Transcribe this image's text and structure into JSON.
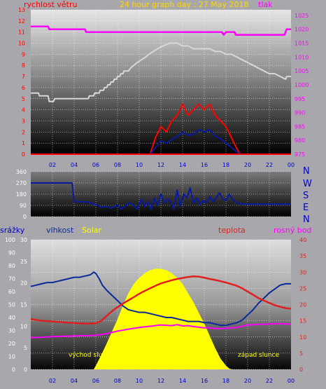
{
  "colors": {
    "wind": "#ff0000",
    "gust": "#ff0000",
    "pressure": "#ff00ff",
    "temperature": "#e02020",
    "dewpoint": "#ff00ff",
    "humidity": "#0a2a9a",
    "direction": "#0a1aa0",
    "solar": "#ffff00",
    "rain": "#0000cc",
    "title": "#ffd800",
    "grid": "#ffffff"
  },
  "chart_data": [
    {
      "type": "line",
      "title": "24 hour graph day : 27 May 2018",
      "ylabel_left": "rychlost větru",
      "ylabel_right": "tlak",
      "xlim": [
        0,
        24
      ],
      "ylim_left": [
        0,
        13
      ],
      "ylim_right": [
        975,
        1027
      ],
      "x_ticks": [
        "02",
        "04",
        "06",
        "08",
        "10",
        "12",
        "14",
        "16",
        "18",
        "20",
        "22",
        "00"
      ],
      "y_ticks_left": [
        "0",
        "1",
        "2",
        "3",
        "4",
        "5",
        "6",
        "7",
        "8",
        "9",
        "10",
        "11",
        "12",
        "13"
      ],
      "y_ticks_right": [
        "975",
        "980",
        "985",
        "990",
        "995",
        "1000",
        "1005",
        "1010",
        "1015",
        "1020",
        "1025"
      ],
      "series": [
        {
          "name": "tlak",
          "axis": "right",
          "x": [
            0,
            1.6,
            1.7,
            5.0,
            5.1,
            9.0,
            9.1,
            17.6,
            17.8,
            18.0,
            18.2,
            18.8,
            18.9,
            23.4,
            23.6,
            24
          ],
          "y": [
            1021,
            1021,
            1020,
            1020,
            1019,
            1019,
            1019,
            1019,
            1018,
            1019,
            1019,
            1019,
            1018,
            1018,
            1020,
            1020
          ]
        },
        {
          "name": "",
          "axis": "right",
          "x": [
            0,
            0.1,
            0.7,
            0.8,
            1.6,
            1.7,
            2.1,
            2.2,
            5.3,
            5.4,
            5.8,
            5.9,
            6.3,
            6.4,
            6.7,
            6.8,
            7.0,
            7.1,
            7.3,
            7.4,
            7.6,
            7.7,
            7.9,
            8.0,
            8.2,
            8.3,
            8.5,
            8.6,
            9.0,
            9.2,
            9.5,
            9.8,
            10.2,
            10.6,
            10.9,
            11.3,
            11.7,
            12.2,
            12.8,
            13.5,
            14.0,
            14.5,
            15.0,
            15.5,
            16.0,
            16.5,
            17.0,
            17.5,
            18.0,
            18.5,
            19.0,
            19.5,
            20.0,
            20.5,
            21.0,
            21.5,
            22.0,
            22.5,
            23.0,
            23.5,
            23.6,
            24
          ],
          "y": [
            997,
            997,
            997,
            996,
            996,
            994,
            994,
            995,
            995,
            996,
            996,
            997,
            997,
            998,
            998,
            999,
            999,
            1000,
            1000,
            1001,
            1001,
            1002,
            1002,
            1003,
            1003,
            1004,
            1004,
            1005,
            1005,
            1006,
            1007,
            1008,
            1009,
            1010,
            1011,
            1012,
            1013,
            1014,
            1015,
            1015,
            1014,
            1014,
            1013,
            1013,
            1013,
            1013,
            1012,
            1012,
            1011,
            1011,
            1010,
            1009,
            1008,
            1007,
            1006,
            1005,
            1004,
            1004,
            1003,
            1002,
            1003,
            1003
          ]
        },
        {
          "name": "",
          "axis": "left",
          "x": [
            11.0,
            11.5,
            12.0,
            12.5,
            13.0,
            13.5,
            14.0,
            14.5,
            15.0,
            15.5,
            16.0,
            16.5,
            17.0,
            17.5,
            18.0,
            18.5,
            19.0,
            19.3
          ],
          "y": [
            0,
            1.5,
            2.5,
            2.0,
            3.0,
            3.5,
            4.5,
            3.5,
            4.0,
            4.5,
            4.0,
            4.5,
            3.5,
            3.0,
            2.5,
            1.5,
            0.5,
            0
          ]
        },
        {
          "name": "",
          "axis": "left",
          "x": [
            11.0,
            11.5,
            12.0,
            12.5,
            13.0,
            13.5,
            14.0,
            14.5,
            15.0,
            15.5,
            16.0,
            16.5,
            17.0,
            17.5,
            18.0,
            18.5,
            19.0,
            19.3
          ],
          "y": [
            0,
            0.6,
            1.2,
            1.0,
            1.3,
            1.6,
            2.0,
            1.7,
            1.8,
            2.2,
            2.0,
            2.2,
            1.6,
            1.4,
            1.0,
            0.6,
            0.2,
            0
          ]
        }
      ]
    },
    {
      "type": "line",
      "xlim": [
        0,
        24
      ],
      "ylim": [
        0,
        360
      ],
      "y_ticks": [
        "0",
        "45",
        "90",
        "135",
        "180",
        "225",
        "270",
        "315",
        "360"
      ],
      "direction_labels": [
        "N",
        "W",
        "S",
        "E",
        "N"
      ],
      "series": [
        {
          "name": "",
          "x": [
            0,
            3.8,
            3.9,
            4.0,
            5.0,
            5.4,
            5.5,
            6.2,
            6.4,
            7.0,
            7.4,
            8.0,
            8.3,
            8.7,
            9.0,
            9.4,
            9.8,
            10.2,
            10.5,
            10.8,
            11.1,
            11.4,
            11.7,
            12.0,
            12.3,
            12.6,
            12.9,
            13.2,
            13.5,
            13.8,
            14.1,
            14.4,
            14.7,
            15.0,
            15.3,
            15.6,
            15.9,
            16.2,
            16.5,
            16.8,
            17.1,
            17.4,
            17.7,
            18.0,
            18.3,
            18.6,
            19.0,
            19.5,
            20.0,
            20.5,
            21.0,
            22.0,
            23.0,
            24
          ],
          "y": [
            270,
            270,
            200,
            120,
            120,
            115,
            110,
            90,
            75,
            80,
            70,
            90,
            60,
            80,
            110,
            95,
            60,
            140,
            80,
            120,
            60,
            150,
            90,
            180,
            110,
            140,
            120,
            60,
            210,
            80,
            180,
            150,
            230,
            110,
            150,
            95,
            130,
            110,
            160,
            120,
            150,
            190,
            140,
            130,
            180,
            140,
            110,
            100,
            100,
            100,
            100,
            100,
            100,
            100
          ]
        }
      ]
    },
    {
      "type": "line",
      "ylabels": [
        "srážky",
        "vlhkost",
        "Solar",
        "teplota",
        "rosný bod"
      ],
      "xlim": [
        0,
        24
      ],
      "y_ticks_rain": [
        "0",
        "10",
        "20",
        "30",
        "40",
        "50",
        "60",
        "70",
        "80",
        "90",
        "100"
      ],
      "y_ticks_humidity": [
        "0",
        "5",
        "10",
        "15",
        "20",
        "25",
        "30"
      ],
      "y_ticks_temp": [
        "0",
        "5",
        "10",
        "15",
        "20",
        "25",
        "30",
        "35",
        "40"
      ],
      "annotations": [
        "východ slunce",
        "západ slunce"
      ],
      "series": [
        {
          "name": "Solar",
          "x": [
            5.8,
            6.0,
            6.5,
            7.0,
            7.5,
            8.0,
            8.5,
            9.0,
            9.5,
            10.0,
            10.5,
            11.0,
            11.5,
            12.0,
            12.5,
            13.0,
            13.5,
            14.0,
            14.5,
            15.0,
            15.5,
            16.0,
            16.5,
            17.0,
            17.5,
            18.0,
            18.3,
            18.6
          ],
          "y": [
            0,
            25,
            95,
            170,
            250,
            330,
            420,
            500,
            560,
            600,
            630,
            650,
            660,
            660,
            650,
            630,
            600,
            560,
            500,
            440,
            370,
            300,
            220,
            140,
            70,
            25,
            5,
            0
          ]
        },
        {
          "name": "vlhkost",
          "x": [
            0,
            0.5,
            1.0,
            1.5,
            2.0,
            2.5,
            3.0,
            3.5,
            4.0,
            4.5,
            5.0,
            5.5,
            5.8,
            6.0,
            6.3,
            6.6,
            7.0,
            7.5,
            8.0,
            8.5,
            9.0,
            9.5,
            10.0,
            10.5,
            11.0,
            11.5,
            12.0,
            12.5,
            13.0,
            13.5,
            14.0,
            14.5,
            15.0,
            15.5,
            16.0,
            16.5,
            17.0,
            17.5,
            18.0,
            18.5,
            19.0,
            19.5,
            20.0,
            20.5,
            21.0,
            21.5,
            22.0,
            22.5,
            23.0,
            23.5,
            24
          ],
          "y": [
            64,
            65,
            66,
            67,
            67,
            68,
            69,
            70,
            71,
            71,
            72,
            73,
            75,
            74,
            70,
            65,
            61,
            57,
            53,
            49,
            46,
            45,
            44,
            44,
            43,
            42,
            41,
            40,
            40,
            39,
            38,
            37,
            37,
            37,
            36,
            36,
            35,
            34,
            34,
            35,
            36,
            38,
            42,
            46,
            51,
            55,
            59,
            62,
            65,
            66,
            66
          ]
        },
        {
          "name": "teplota",
          "x": [
            0,
            1,
            2,
            3,
            4,
            5,
            6,
            6.5,
            7,
            7.5,
            8,
            8.5,
            9,
            9.5,
            10,
            10.5,
            11,
            11.5,
            12,
            12.5,
            13,
            13.5,
            14,
            14.5,
            15,
            15.5,
            16,
            16.5,
            17,
            17.5,
            18,
            18.5,
            19,
            19.5,
            20,
            20.5,
            21,
            21.5,
            22,
            22.5,
            23,
            23.5,
            24
          ],
          "y": [
            15.5,
            15.0,
            14.8,
            14.5,
            14.3,
            14.1,
            14.2,
            15.0,
            16.5,
            18.0,
            19.2,
            20.3,
            21.3,
            22.3,
            23.3,
            24.2,
            25.0,
            25.8,
            26.5,
            27.0,
            27.5,
            27.9,
            28.2,
            28.5,
            28.7,
            28.6,
            28.3,
            27.9,
            27.6,
            27.2,
            26.8,
            26.3,
            25.8,
            25.0,
            24.0,
            23.0,
            22.0,
            21.2,
            20.5,
            19.8,
            19.3,
            18.9,
            18.7
          ]
        },
        {
          "name": "rosný bod",
          "x": [
            0,
            1,
            2,
            3,
            4,
            5,
            6,
            7,
            8,
            9,
            10,
            11,
            12,
            12.5,
            13,
            13.5,
            14,
            14.5,
            15,
            15.5,
            16,
            16.5,
            17,
            17.5,
            18,
            18.5,
            19,
            19.5,
            20,
            20.5,
            21,
            21.5,
            22,
            22.5,
            23,
            23.5,
            24
          ],
          "y": [
            9.8,
            9.9,
            10.1,
            10.2,
            10.3,
            10.4,
            10.5,
            11.0,
            11.8,
            12.4,
            12.9,
            13.3,
            13.7,
            13.6,
            13.5,
            13.8,
            13.4,
            13.5,
            13.2,
            13.0,
            12.8,
            12.8,
            12.6,
            12.6,
            12.7,
            12.8,
            12.9,
            13.3,
            13.7,
            13.8,
            13.9,
            13.9,
            14.0,
            14.1,
            14.1,
            14.0,
            14.0
          ]
        }
      ]
    }
  ]
}
